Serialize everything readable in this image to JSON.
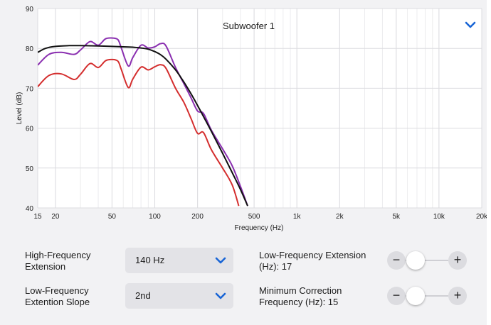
{
  "header": {
    "title": "Subwoofer 1",
    "dropdown_icon": "chevron-down-icon"
  },
  "chart_data": {
    "type": "line",
    "x_scale": "log",
    "xlim": [
      15,
      20000
    ],
    "ylim": [
      40,
      90
    ],
    "xlabel": "Frequency (Hz)",
    "ylabel": "Level (dB)",
    "x_ticks": [
      15,
      20,
      50,
      100,
      200,
      500,
      1000,
      2000,
      5000,
      10000,
      20000
    ],
    "x_tick_labels": [
      "15",
      "20",
      "50",
      "100",
      "200",
      "500",
      "1k",
      "2k",
      "5k",
      "10k",
      "20k"
    ],
    "y_ticks": [
      40,
      50,
      60,
      70,
      80,
      90
    ],
    "y_tick_labels": [
      "40",
      "50",
      "60",
      "70",
      "80",
      "90"
    ],
    "grid": true,
    "series": [
      {
        "color": "#8a2fb0",
        "x": [
          15,
          18,
          22,
          27,
          30,
          35,
          40,
          45,
          50,
          55,
          58,
          65,
          70,
          80,
          90,
          100,
          110,
          120,
          140,
          160,
          180,
          200,
          220,
          250,
          300,
          350,
          400,
          450
        ],
        "y": [
          75.8,
          78.5,
          79,
          78.5,
          79.6,
          81.7,
          80.8,
          82.4,
          82.6,
          82.2,
          80.2,
          75.6,
          77.7,
          80.8,
          80.1,
          80.4,
          81.2,
          80.6,
          75.2,
          71.2,
          67.6,
          64.3,
          63.7,
          59.5,
          54.8,
          50.6,
          45.5,
          40.5
        ]
      },
      {
        "color": "#d42e2e",
        "x": [
          15,
          18,
          22,
          27,
          30,
          35,
          40,
          45,
          50,
          55,
          58,
          65,
          70,
          80,
          90,
          100,
          110,
          120,
          140,
          160,
          180,
          200,
          220,
          250,
          300,
          350,
          390
        ],
        "y": [
          70.4,
          73.2,
          73.6,
          72.2,
          73.5,
          76.2,
          75.2,
          76.9,
          77.2,
          76.8,
          74.8,
          70.2,
          72.3,
          75.3,
          74.6,
          75.4,
          75.9,
          75.0,
          70.0,
          66.5,
          62.4,
          58.7,
          58.9,
          54.6,
          50.0,
          45.8,
          40.5
        ]
      },
      {
        "color": "#111111",
        "x": [
          15,
          17,
          20,
          25,
          30,
          40,
          50,
          60,
          70,
          80,
          90,
          100,
          110,
          120,
          140,
          160,
          180,
          200,
          225,
          250,
          300,
          350,
          400,
          450
        ],
        "y": [
          79.0,
          80.0,
          80.5,
          80.7,
          80.7,
          80.6,
          80.5,
          80.4,
          80.3,
          80.1,
          79.8,
          79.2,
          78.4,
          77.3,
          74.6,
          71.6,
          68.6,
          65.7,
          62.3,
          59.2,
          53.7,
          48.9,
          44.7,
          40.5
        ]
      }
    ]
  },
  "controls": {
    "hf_extension_label": "High-Frequency Extension",
    "hf_extension_value": "140 Hz",
    "lf_slope_label": "Low-Frequency Extention Slope",
    "lf_slope_value": "2nd",
    "lf_extension_label": "Low-Frequency Extension (Hz): 17",
    "min_correction_label": "Minimum Correction Frequency (Hz): 15",
    "minus": "−",
    "plus": "+"
  },
  "colors": {
    "accent": "#1a66d6",
    "panel": "#f2f2f4",
    "control": "#e3e3e7"
  }
}
